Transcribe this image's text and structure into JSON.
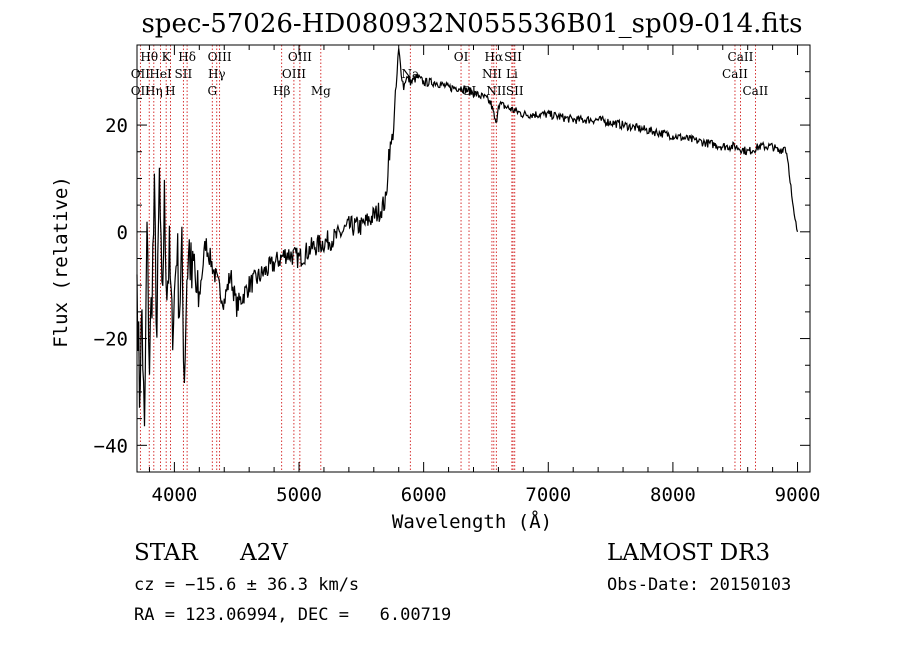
{
  "chart_data": {
    "type": "line",
    "title": "spec-57026-HD080932N055536B01_sp09-014.fits",
    "xlabel": "Wavelength (Å)",
    "ylabel": "Flux (relative)",
    "xlim": [
      3700,
      9100
    ],
    "ylim": [
      -45,
      35
    ],
    "xticks": [
      4000,
      5000,
      6000,
      7000,
      8000,
      9000
    ],
    "yticks": [
      -40,
      -20,
      0,
      20
    ],
    "x_tick_labels": [
      "4000",
      "5000",
      "6000",
      "7000",
      "8000",
      "9000"
    ],
    "y_tick_labels": [
      "−40",
      "−20",
      "0",
      "20"
    ],
    "series": [
      {
        "name": "spectrum",
        "x": [
          3700,
          3720,
          3740,
          3760,
          3780,
          3800,
          3820,
          3840,
          3860,
          3880,
          3900,
          3920,
          3940,
          3960,
          3980,
          4000,
          4020,
          4040,
          4060,
          4080,
          4100,
          4120,
          4140,
          4160,
          4180,
          4200,
          4250,
          4300,
          4350,
          4400,
          4450,
          4500,
          4600,
          4700,
          4800,
          4900,
          5000,
          5100,
          5200,
          5300,
          5400,
          5500,
          5600,
          5650,
          5700,
          5720,
          5740,
          5760,
          5780,
          5800,
          5820,
          5840,
          5860,
          5900,
          5950,
          6000,
          6100,
          6200,
          6300,
          6400,
          6500,
          6540,
          6563,
          6580,
          6600,
          6700,
          6800,
          6900,
          7000,
          7200,
          7400,
          7600,
          7800,
          8000,
          8200,
          8400,
          8500,
          8600,
          8700,
          8800,
          8850,
          8900,
          8920,
          8940,
          8960,
          8980,
          9000
        ],
        "y": [
          -8,
          -30,
          -15,
          -40,
          0,
          -25,
          -10,
          5,
          -20,
          10,
          -15,
          5,
          -10,
          -5,
          -18,
          -12,
          -2,
          -14,
          -5,
          -27,
          -8,
          -3,
          -10,
          -6,
          -14,
          -12,
          -2,
          -6,
          -10,
          -13,
          -8,
          -14,
          -10,
          -8,
          -6,
          -4,
          -5,
          -3,
          -2,
          -1,
          1,
          1,
          3,
          4,
          6,
          15,
          16,
          20,
          27,
          34,
          30,
          27,
          29,
          28,
          29,
          28,
          28,
          27,
          27,
          26,
          25,
          24,
          22,
          20,
          24,
          23,
          22,
          22,
          22,
          21,
          21,
          20,
          19,
          18,
          17,
          16,
          16,
          15,
          16,
          16,
          15,
          16,
          14,
          10,
          5,
          2,
          0
        ]
      }
    ],
    "line_markers": [
      {
        "label": "Hθ",
        "x": 3798,
        "row": 0
      },
      {
        "label": "OII",
        "x": 3727,
        "row": 1
      },
      {
        "label": "OII",
        "x": 3727,
        "row": 2
      },
      {
        "label": "Hη",
        "x": 3835,
        "row": 2
      },
      {
        "label": "HeI",
        "x": 3889,
        "row": 1
      },
      {
        "label": "K",
        "x": 3934,
        "row": 0
      },
      {
        "label": "H",
        "x": 3968,
        "row": 2
      },
      {
        "label": "Hδ",
        "x": 4102,
        "row": 0
      },
      {
        "label": "SII",
        "x": 4072,
        "row": 1
      },
      {
        "label": "OIII",
        "x": 4363,
        "row": 0
      },
      {
        "label": "Hγ",
        "x": 4340,
        "row": 1
      },
      {
        "label": "G",
        "x": 4304,
        "row": 2
      },
      {
        "label": "Hβ",
        "x": 4861,
        "row": 2
      },
      {
        "label": "OIII",
        "x": 4959,
        "row": 1
      },
      {
        "label": "OIII",
        "x": 5007,
        "row": 0
      },
      {
        "label": "Mg",
        "x": 5175,
        "row": 2
      },
      {
        "label": "Na",
        "x": 5893,
        "row": 1
      },
      {
        "label": "OI",
        "x": 6300,
        "row": 0
      },
      {
        "label": "OI",
        "x": 6364,
        "row": 2
      },
      {
        "label": "Hα",
        "x": 6563,
        "row": 0
      },
      {
        "label": "NII",
        "x": 6548,
        "row": 1
      },
      {
        "label": "NII",
        "x": 6583,
        "row": 2
      },
      {
        "label": "SII",
        "x": 6717,
        "row": 0
      },
      {
        "label": "Li",
        "x": 6708,
        "row": 1
      },
      {
        "label": "SII",
        "x": 6731,
        "row": 2
      },
      {
        "label": "CaII",
        "x": 8542,
        "row": 0
      },
      {
        "label": "CaII",
        "x": 8498,
        "row": 1
      },
      {
        "label": "CaII",
        "x": 8662,
        "row": 2
      }
    ]
  },
  "info": {
    "object_type": "STAR",
    "spectral_class": "A2V",
    "survey": "LAMOST DR3",
    "cz": "cz = −15.6 ± 36.3 km/s",
    "obs_date": "Obs-Date: 20150103",
    "coords": "RA = 123.06994, DEC =   6.00719"
  },
  "colors": {
    "spectrum": "#000000",
    "marker": "#cc0000",
    "axis": "#000000"
  }
}
